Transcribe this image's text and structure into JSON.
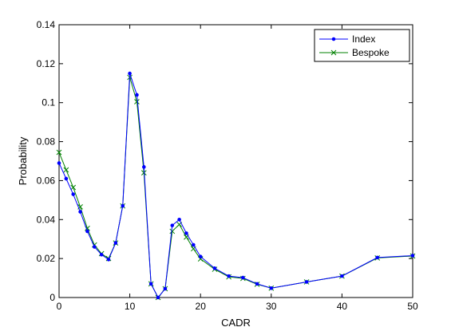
{
  "chart_data": {
    "type": "line",
    "title": "",
    "xlabel": "CADR",
    "ylabel": "Probability",
    "xlim": [
      0,
      50
    ],
    "ylim": [
      0,
      0.14
    ],
    "x_ticks": [
      0,
      10,
      20,
      30,
      40,
      50
    ],
    "y_ticks": [
      0,
      0.02,
      0.04,
      0.06,
      0.08,
      0.1,
      0.12,
      0.14
    ],
    "x_tick_labels": [
      "0",
      "10",
      "20",
      "30",
      "40",
      "50"
    ],
    "y_tick_labels": [
      "0",
      "0.02",
      "0.04",
      "0.06",
      "0.08",
      "0.1",
      "0.12",
      "0.14"
    ],
    "grid": false,
    "legend_position": "top-right",
    "series": [
      {
        "name": "Index",
        "color": "#0000ff",
        "marker": "dot",
        "x": [
          0,
          1,
          2,
          3,
          4,
          5,
          6,
          7,
          8,
          9,
          10,
          11,
          12,
          13,
          14,
          15,
          16,
          17,
          18,
          19,
          20,
          22,
          24,
          26,
          28,
          30,
          35,
          40,
          45,
          50
        ],
        "y": [
          0.069,
          0.061,
          0.053,
          0.044,
          0.034,
          0.026,
          0.022,
          0.0195,
          0.028,
          0.047,
          0.115,
          0.104,
          0.067,
          0.007,
          0.0,
          0.0045,
          0.037,
          0.04,
          0.033,
          0.027,
          0.021,
          0.015,
          0.011,
          0.0102,
          0.007,
          0.0048,
          0.008,
          0.011,
          0.0205,
          0.0215
        ]
      },
      {
        "name": "Bespoke",
        "color": "#008000",
        "marker": "x",
        "x": [
          0,
          1,
          2,
          3,
          4,
          5,
          6,
          7,
          8,
          9,
          10,
          11,
          12,
          13,
          14,
          15,
          16,
          17,
          18,
          19,
          20,
          22,
          24,
          26,
          28,
          30,
          35,
          40,
          45,
          50
        ],
        "y": [
          0.0745,
          0.0655,
          0.0565,
          0.0465,
          0.0355,
          0.027,
          0.0225,
          0.02,
          0.028,
          0.047,
          0.113,
          0.1005,
          0.064,
          0.007,
          0.0,
          0.0045,
          0.034,
          0.0375,
          0.031,
          0.025,
          0.0198,
          0.0145,
          0.0106,
          0.0098,
          0.0068,
          0.0048,
          0.008,
          0.011,
          0.0203,
          0.0213
        ]
      }
    ]
  }
}
